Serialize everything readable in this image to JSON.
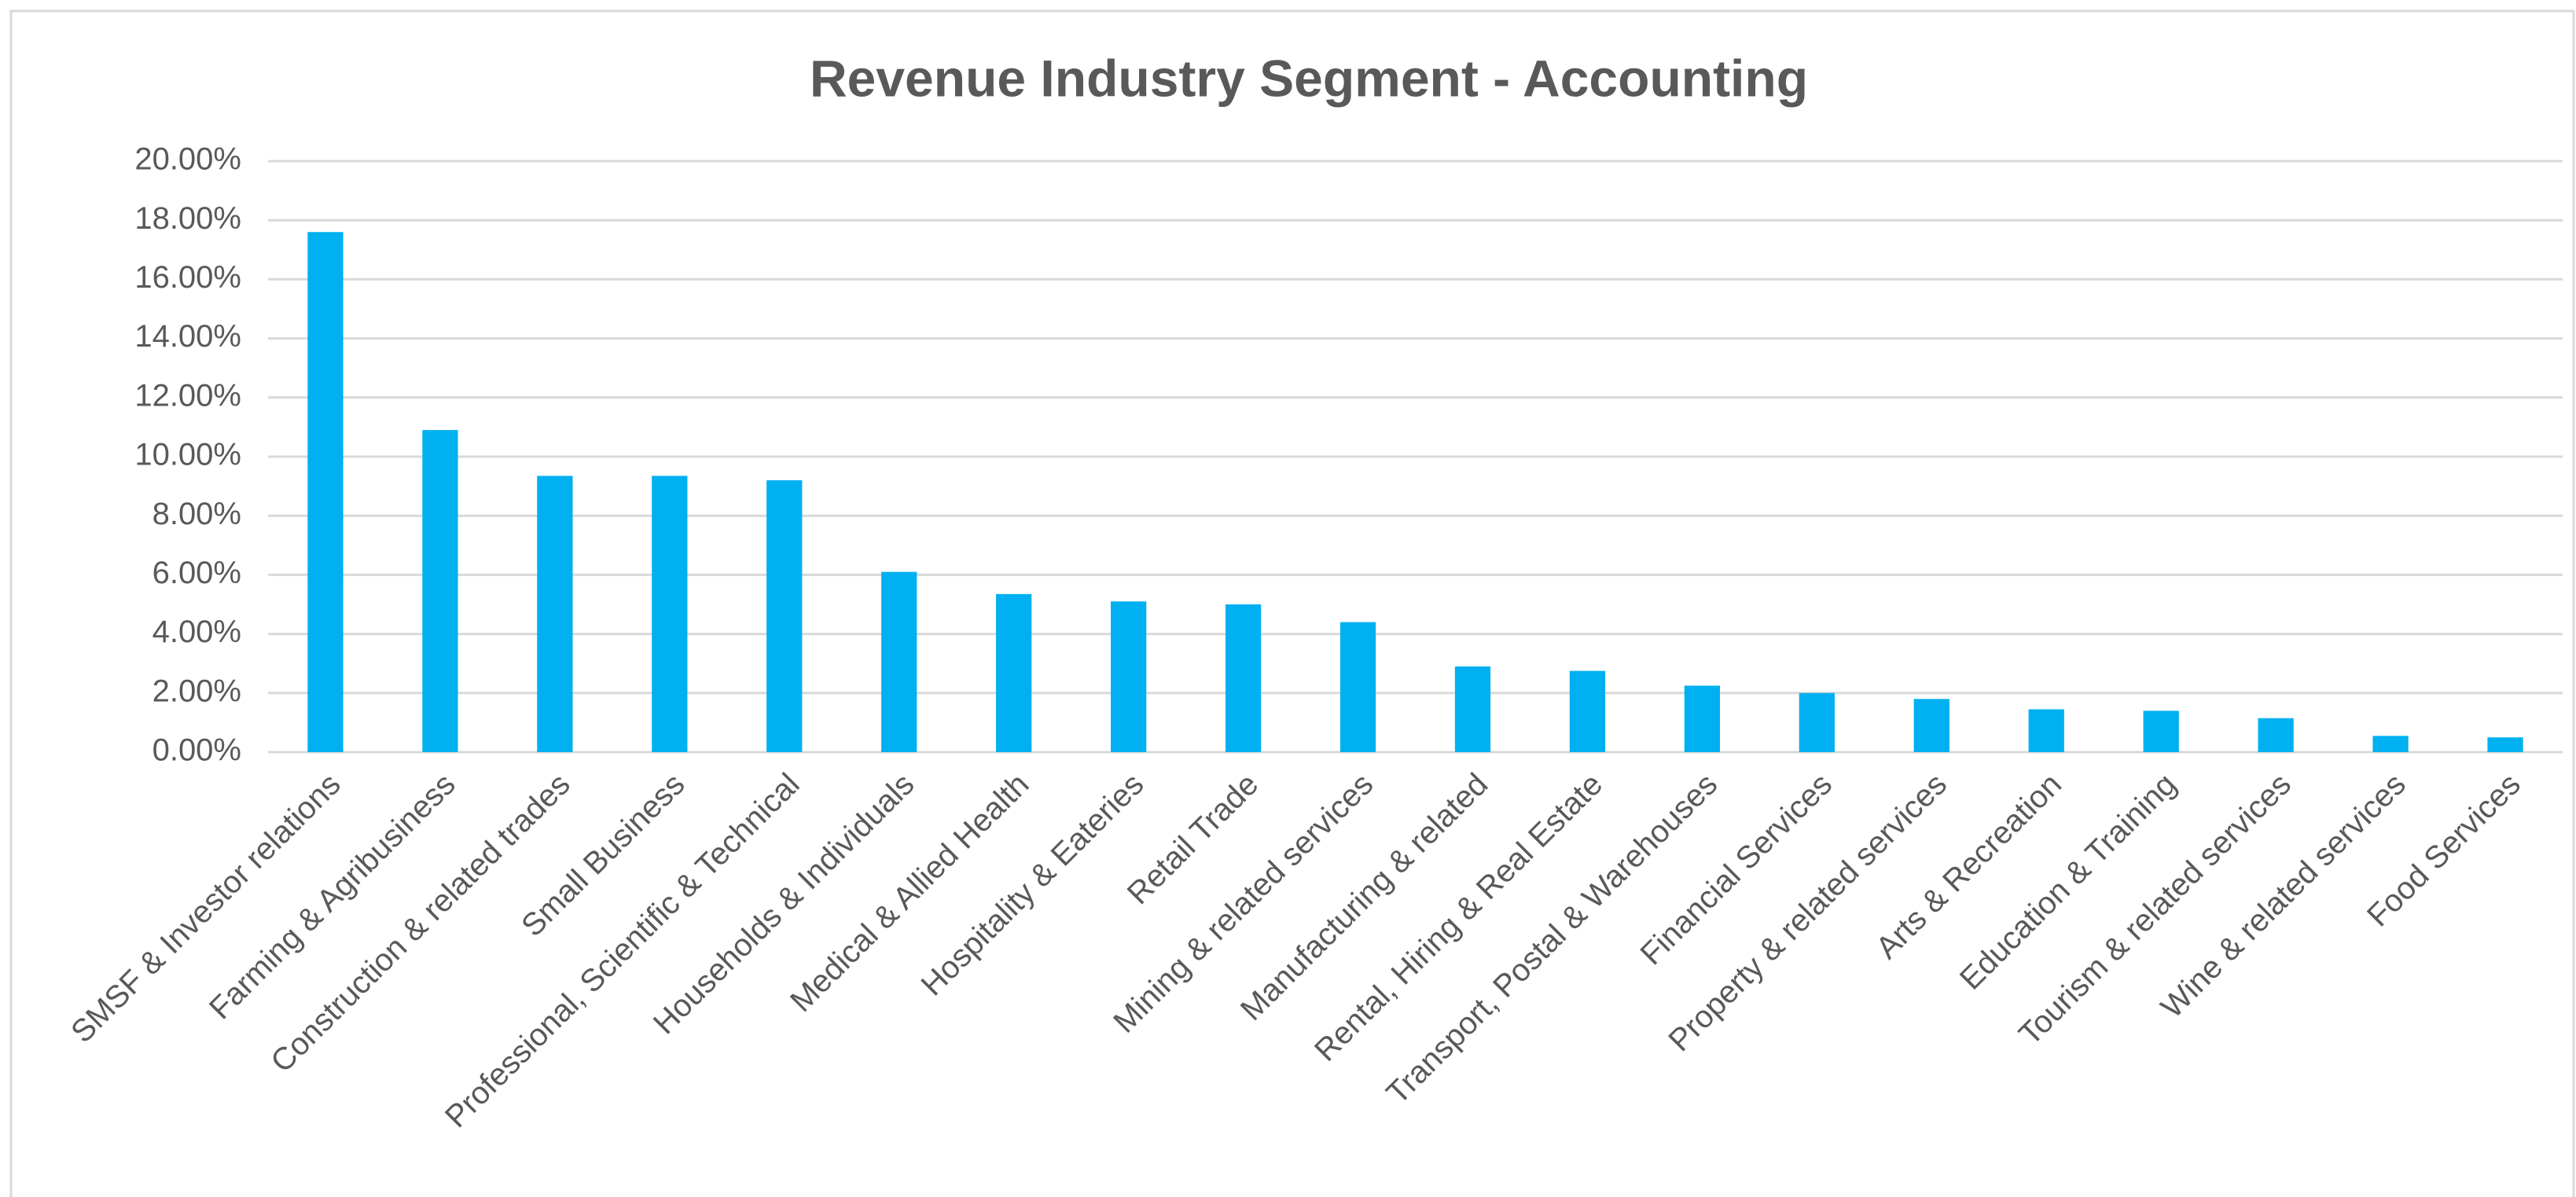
{
  "chart_data": {
    "type": "bar",
    "title": "Revenue Industry Segment - Accounting",
    "categories": [
      "SMSF & Investor relations",
      "Farming & Agribusiness",
      "Construction & related trades",
      "Small Business",
      "Professional, Scientific & Technical",
      "Households & Individuals",
      "Medical & Allied Health",
      "Hospitality & Eateries",
      "Retail Trade",
      "Mining & related services",
      "Manufacturing & related",
      "Rental, Hiring & Real Estate",
      "Transport, Postal & Warehouses",
      "Financial Services",
      "Property & related services",
      "Arts & Recreation",
      "Education & Training",
      "Tourism & related services",
      "Wine & related services",
      "Food Services"
    ],
    "values": [
      17.6,
      10.9,
      9.35,
      9.35,
      9.2,
      6.1,
      5.35,
      5.1,
      5.0,
      4.4,
      2.9,
      2.75,
      2.25,
      2.0,
      1.8,
      1.45,
      1.4,
      1.15,
      0.55,
      0.5
    ],
    "color": "#00b0f0",
    "ylim": [
      0,
      20
    ],
    "yticks": [
      {
        "value": 0,
        "label": "0.00%"
      },
      {
        "value": 2,
        "label": "2.00%"
      },
      {
        "value": 4,
        "label": "4.00%"
      },
      {
        "value": 6,
        "label": "6.00%"
      },
      {
        "value": 8,
        "label": "8.00%"
      },
      {
        "value": 10,
        "label": "10.00%"
      },
      {
        "value": 12,
        "label": "12.00%"
      },
      {
        "value": 14,
        "label": "14.00%"
      },
      {
        "value": 16,
        "label": "16.00%"
      },
      {
        "value": 18,
        "label": "18.00%"
      },
      {
        "value": 20,
        "label": "20.00%"
      }
    ],
    "grid": true
  }
}
